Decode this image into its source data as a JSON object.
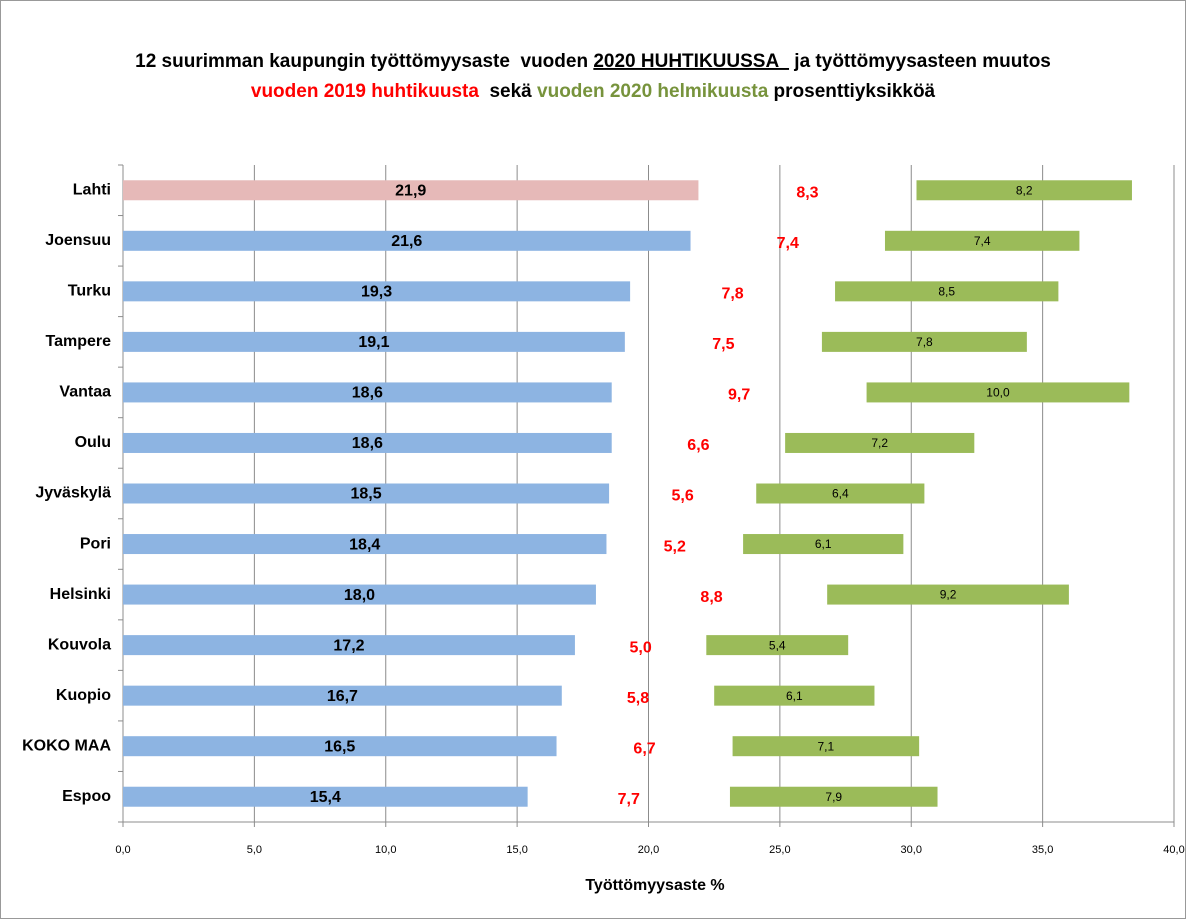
{
  "chart_data": {
    "type": "bar",
    "orientation": "horizontal",
    "stacked": true,
    "title_lines": [
      [
        {
          "text": "12 suurimman kaupungin työttömyysaste  vuoden ",
          "color": "#000000"
        },
        {
          "text": "2020 HUHTIKUUSSA  ",
          "color": "#000000",
          "underline": true
        },
        {
          "text": " ja työttömyysasteen muutos",
          "color": "#000000"
        }
      ],
      [
        {
          "text": "vuoden 2019 huhtikuusta ",
          "color": "#ff0000"
        },
        {
          "text": " sekä ",
          "color": "#000000"
        },
        {
          "text": "vuoden 2020 helmikuusta",
          "color": "#77933c"
        },
        {
          "text": " prosenttiyksikköä",
          "color": "#000000"
        }
      ]
    ],
    "xlabel": "Työttömyysaste %",
    "categories": [
      "Lahti",
      "Joensuu",
      "Turku",
      "Tampere",
      "Vantaa",
      "Oulu",
      "Jyväskylä",
      "Pori",
      "Helsinki",
      "Kouvola",
      "Kuopio",
      "KOKO MAA",
      "Espoo"
    ],
    "series": [
      {
        "values": [
          21.9,
          21.6,
          19.3,
          19.1,
          18.6,
          18.6,
          18.5,
          18.4,
          18.0,
          17.2,
          16.7,
          16.5,
          15.4
        ],
        "value_labels": [
          "21,9",
          "21,6",
          "19,3",
          "19,1",
          "18,6",
          "18,6",
          "18,5",
          "18,4",
          "18,0",
          "17,2",
          "16,7",
          "16,5",
          "15,4"
        ],
        "colors": [
          "#e6b9b8",
          "#8db4e2",
          "#8db4e2",
          "#8db4e2",
          "#8db4e2",
          "#8db4e2",
          "#8db4e2",
          "#8db4e2",
          "#8db4e2",
          "#8db4e2",
          "#8db4e2",
          "#8db4e2",
          "#8db4e2"
        ],
        "label_color": "#000000",
        "filled": true
      },
      {
        "values": [
          8.3,
          7.4,
          7.8,
          7.5,
          9.7,
          6.6,
          5.6,
          5.2,
          8.8,
          5.0,
          5.8,
          6.7,
          7.7
        ],
        "value_labels": [
          "8,3",
          "7,4",
          "7,8",
          "7,5",
          "9,7",
          "6,6",
          "5,6",
          "5,2",
          "8,8",
          "5,0",
          "5,8",
          "6,7",
          "7,7"
        ],
        "color": "#ff0000",
        "label_color": "#ff0000",
        "filled": false
      },
      {
        "values": [
          8.2,
          7.4,
          8.5,
          7.8,
          10.0,
          7.2,
          6.4,
          6.1,
          9.2,
          5.4,
          6.1,
          7.1,
          7.9
        ],
        "value_labels": [
          "8,2",
          "7,4",
          "8,5",
          "7,8",
          "10,0",
          "7,2",
          "6,4",
          "6,1",
          "9,2",
          "5,4",
          "6,1",
          "7,1",
          "7,9"
        ],
        "color": "#9bbb59",
        "label_color": "#000000",
        "filled": true
      }
    ],
    "xlim": [
      0,
      40
    ],
    "xticks": [
      {
        "value": 0,
        "label": "0,0"
      },
      {
        "value": 5,
        "label": "5,0"
      },
      {
        "value": 10,
        "label": "10,0"
      },
      {
        "value": 15,
        "label": "15,0"
      },
      {
        "value": 20,
        "label": "20,0"
      },
      {
        "value": 25,
        "label": "25,0"
      },
      {
        "value": 30,
        "label": "30,0"
      },
      {
        "value": 35,
        "label": "35,0"
      },
      {
        "value": 40,
        "label": "40,0"
      }
    ],
    "grid": true
  }
}
